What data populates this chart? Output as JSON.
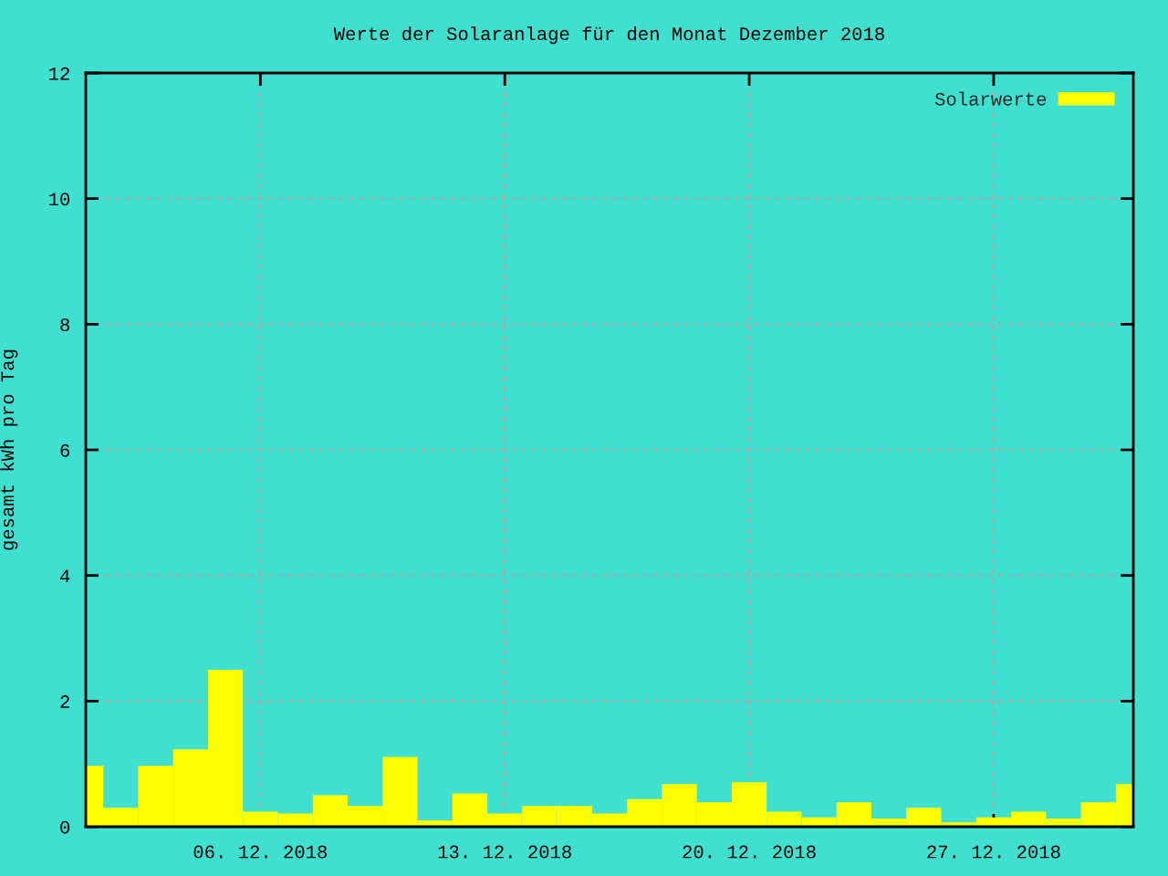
{
  "chart_data": {
    "type": "bar",
    "title": "Werte der Solaranlage für den Monat Dezember 2018",
    "ylabel": "gesamt kWh pro Tag",
    "x": [
      "2018-12-01",
      "2018-12-02",
      "2018-12-03",
      "2018-12-04",
      "2018-12-05",
      "2018-12-06",
      "2018-12-07",
      "2018-12-08",
      "2018-12-09",
      "2018-12-10",
      "2018-12-11",
      "2018-12-12",
      "2018-12-13",
      "2018-12-14",
      "2018-12-15",
      "2018-12-16",
      "2018-12-17",
      "2018-12-18",
      "2018-12-19",
      "2018-12-20",
      "2018-12-21",
      "2018-12-22",
      "2018-12-23",
      "2018-12-24",
      "2018-12-25",
      "2018-12-26",
      "2018-12-27",
      "2018-12-28",
      "2018-12-29",
      "2018-12-30",
      "2018-12-31"
    ],
    "series": [
      {
        "name": "Solarwerte",
        "color": "#ffff00",
        "values": [
          0.97,
          0.3,
          0.97,
          1.23,
          2.5,
          0.24,
          0.21,
          0.5,
          0.33,
          1.11,
          0.1,
          0.53,
          0.21,
          0.33,
          0.33,
          0.21,
          0.44,
          0.68,
          0.39,
          0.71,
          0.24,
          0.15,
          0.39,
          0.13,
          0.3,
          0.07,
          0.15,
          0.24,
          0.13,
          0.39,
          0.68
        ]
      }
    ],
    "xlim": [
      "2018-12-01",
      "2018-12-31"
    ],
    "xticks": [
      {
        "value": "2018-12-06",
        "label": "06. 12. 2018"
      },
      {
        "value": "2018-12-13",
        "label": "13. 12. 2018"
      },
      {
        "value": "2018-12-20",
        "label": "20. 12. 2018"
      },
      {
        "value": "2018-12-27",
        "label": "27. 12. 2018"
      }
    ],
    "ylim": [
      0,
      12
    ],
    "yticks": [
      0,
      2,
      4,
      6,
      8,
      10,
      12
    ],
    "grid": true,
    "legend": "top right"
  }
}
